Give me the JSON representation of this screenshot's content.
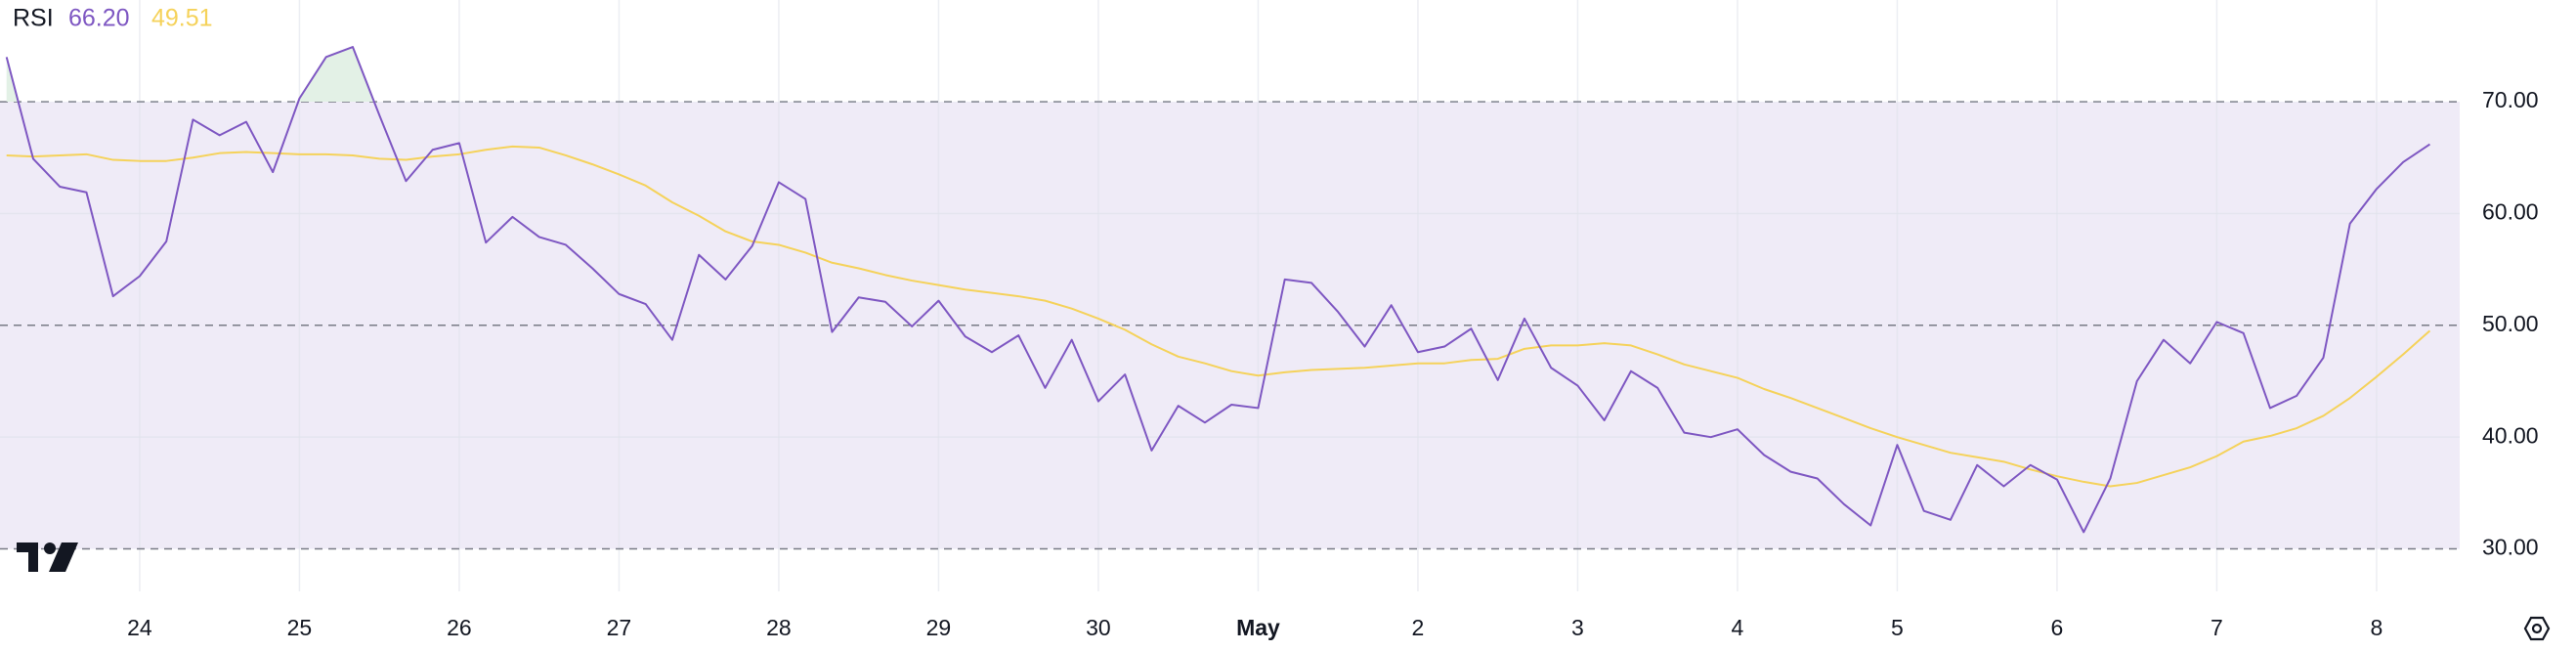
{
  "chart_data": {
    "type": "line",
    "indicator": "RSI",
    "categories": [
      null,
      null,
      null,
      null,
      null,
      "24",
      null,
      null,
      null,
      null,
      null,
      "25",
      null,
      null,
      null,
      null,
      null,
      "26",
      null,
      null,
      null,
      null,
      null,
      "27",
      null,
      null,
      null,
      null,
      null,
      "28",
      null,
      null,
      null,
      null,
      null,
      "29",
      null,
      null,
      null,
      null,
      null,
      "30",
      null,
      null,
      null,
      null,
      null,
      "May",
      null,
      null,
      null,
      null,
      null,
      "2",
      null,
      null,
      null,
      null,
      null,
      "3",
      null,
      null,
      null,
      null,
      null,
      "4",
      null,
      null,
      null,
      null,
      null,
      "5",
      null,
      null,
      null,
      null,
      null,
      "6",
      null,
      null,
      null,
      null,
      null,
      "7",
      null,
      null,
      null,
      null,
      null,
      "8",
      null,
      null
    ],
    "bold_categories": [
      "May"
    ],
    "series": [
      {
        "color": "#7e57c2",
        "last_label": "66.20",
        "values": [
          74,
          64.9,
          62.4,
          61.9,
          52.6,
          54.4,
          57.5,
          68.4,
          67,
          68.2,
          63.7,
          70.3,
          74,
          74.9,
          68.8,
          62.9,
          65.7,
          66.3,
          57.4,
          59.7,
          57.9,
          57.2,
          55.1,
          52.8,
          51.9,
          48.7,
          56.3,
          54.1,
          57.1,
          62.8,
          61.3,
          49.4,
          52.5,
          52.1,
          49.9,
          52.2,
          49,
          47.6,
          49.1,
          44.4,
          48.7,
          43.2,
          45.6,
          38.8,
          42.8,
          41.3,
          42.9,
          42.6,
          54.1,
          53.8,
          51.2,
          48.1,
          51.8,
          47.6,
          48.1,
          49.7,
          45.1,
          50.6,
          46.2,
          44.6,
          41.5,
          45.9,
          44.4,
          40.4,
          40,
          40.7,
          38.4,
          36.9,
          36.3,
          34,
          32.1,
          39.3,
          33.4,
          32.6,
          37.5,
          35.6,
          37.5,
          36.2,
          31.5,
          36.3,
          45,
          48.7,
          46.6,
          50.3,
          49.3,
          42.6,
          43.7,
          47.1,
          59.1,
          62.2,
          64.6,
          66.2
        ]
      },
      {
        "color": "#f5d25a",
        "last_label": "49.51",
        "values": [
          65.2,
          65.1,
          65.2,
          65.3,
          64.8,
          64.7,
          64.7,
          65,
          65.4,
          65.5,
          65.4,
          65.3,
          65.3,
          65.2,
          64.9,
          64.8,
          65.1,
          65.3,
          65.7,
          66,
          65.9,
          65.2,
          64.4,
          63.5,
          62.5,
          61,
          59.8,
          58.4,
          57.5,
          57.2,
          56.5,
          55.6,
          55.1,
          54.5,
          54,
          53.6,
          53.2,
          52.9,
          52.6,
          52.2,
          51.5,
          50.6,
          49.6,
          48.3,
          47.2,
          46.6,
          45.9,
          45.5,
          45.8,
          46,
          46.1,
          46.2,
          46.4,
          46.6,
          46.6,
          46.9,
          47,
          47.9,
          48.2,
          48.2,
          48.4,
          48.2,
          47.4,
          46.5,
          45.9,
          45.3,
          44.3,
          43.5,
          42.6,
          41.7,
          40.8,
          40,
          39.3,
          38.6,
          38.2,
          37.8,
          37.1,
          36.5,
          36,
          35.6,
          35.9,
          36.6,
          37.3,
          38.3,
          39.6,
          40.1,
          40.8,
          41.9,
          43.5,
          45.4,
          47.4,
          49.51
        ]
      }
    ],
    "ylim": [
      26.2,
      79.1
    ],
    "yticks": [
      {
        "value": 30,
        "label": "30.00"
      },
      {
        "value": 40,
        "label": "40.00"
      },
      {
        "value": 50,
        "label": "50.00"
      },
      {
        "value": 60,
        "label": "60.00"
      },
      {
        "value": 70,
        "label": "70.00"
      }
    ],
    "bands": {
      "upper": 70,
      "middle": 50,
      "lower": 30,
      "color": "#efebf7",
      "overbought_color": "#e3f1e6"
    },
    "grid": true
  }
}
